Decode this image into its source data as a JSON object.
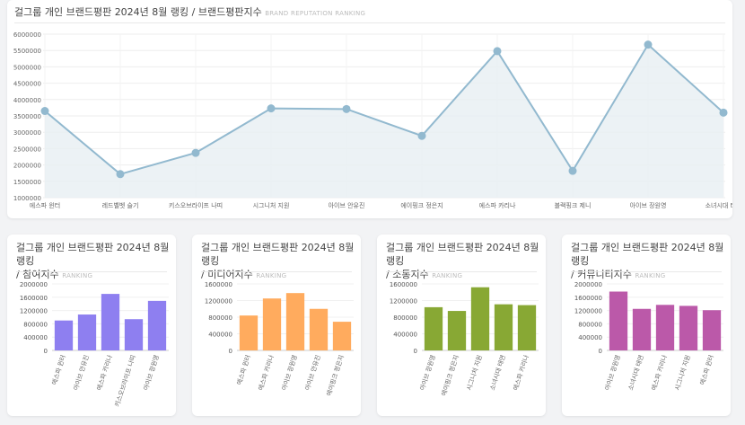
{
  "main": {
    "title": "걸그룹 개인 브랜드평판 2024년 8월 랭킹 / 브랜드평판지수",
    "subtitle": "BRAND REPUTATION RANKING"
  },
  "small_cards": [
    {
      "title_line1": "걸그룹 개인 브랜드평판 2024년 8월 랭킹",
      "title_line2": "/ 참여지수",
      "subtitle": "RANKING"
    },
    {
      "title_line1": "걸그룹 개인 브랜드평판 2024년 8월 랭킹",
      "title_line2": "/ 미디어지수",
      "subtitle": "RANKING"
    },
    {
      "title_line1": "걸그룹 개인 브랜드평판 2024년 8월 랭킹",
      "title_line2": "/ 소통지수",
      "subtitle": "RANKING"
    },
    {
      "title_line1": "걸그룹 개인 브랜드평판 2024년 8월 랭킹",
      "title_line2": "/ 커뮤니티지수",
      "subtitle": "RANKING"
    }
  ],
  "chart_data": [
    {
      "type": "area",
      "title": "걸그룹 개인 브랜드평판 2024년 8월 랭킹 / 브랜드평판지수",
      "categories": [
        "에스파 윈터",
        "레드벨벳 슬기",
        "키스오브라이프 나띠",
        "시그니처 지원",
        "아이브 안유진",
        "에이핑크 정은지",
        "에스파 카리나",
        "블랙핑크 제니",
        "아이브 장원영",
        "소녀시대 태연"
      ],
      "values": [
        3650000,
        1720000,
        2370000,
        3730000,
        3710000,
        2890000,
        5480000,
        1820000,
        5680000,
        3600000
      ],
      "ylim": [
        1000000,
        6000000
      ],
      "yticks": [
        1000000,
        1500000,
        2000000,
        2500000,
        3000000,
        3500000,
        4000000,
        4500000,
        5000000,
        5500000,
        6000000
      ],
      "grid": true,
      "colors": {
        "line": "#92b9cf",
        "fill": "#e7eff3",
        "point": "#92b9cf"
      }
    },
    {
      "type": "bar",
      "title": "걸그룹 개인 브랜드평판 2024년 8월 랭킹 / 참여지수",
      "categories": [
        "에스파 윈터",
        "아이브 안유진",
        "에스파 카리나",
        "키스오브라이프 나띠",
        "아이브 장원영"
      ],
      "values": [
        900000,
        1080000,
        1700000,
        940000,
        1490000
      ],
      "ylim": [
        0,
        2000000
      ],
      "yticks": [
        0,
        400000,
        800000,
        1200000,
        1600000,
        2000000
      ],
      "color": "#8e7ff0"
    },
    {
      "type": "bar",
      "title": "걸그룹 개인 브랜드평판 2024년 8월 랭킹 / 미디어지수",
      "categories": [
        "에스파 윈터",
        "에스파 카리나",
        "아이브 장원영",
        "아이브 안유진",
        "에이핑크 정은지"
      ],
      "values": [
        840000,
        1250000,
        1380000,
        1000000,
        690000
      ],
      "ylim": [
        0,
        1600000
      ],
      "yticks": [
        0,
        400000,
        800000,
        1200000,
        1600000
      ],
      "color": "#ffab5e"
    },
    {
      "type": "bar",
      "title": "걸그룹 개인 브랜드평판 2024년 8월 랭킹 / 소통지수",
      "categories": [
        "아이브 장원영",
        "에이핑크 정은지",
        "시그니처 지원",
        "소녀시대 태연",
        "에스파 카리나"
      ],
      "values": [
        1040000,
        950000,
        1520000,
        1110000,
        1090000
      ],
      "ylim": [
        0,
        1600000
      ],
      "yticks": [
        0,
        400000,
        800000,
        1200000,
        1600000
      ],
      "color": "#88a834"
    },
    {
      "type": "bar",
      "title": "걸그룹 개인 브랜드평판 2024년 8월 랭킹 / 커뮤니티지수",
      "categories": [
        "아이브 장원영",
        "소녀시대 태연",
        "에스파 카리나",
        "시그니처 지원",
        "에스파 윈터"
      ],
      "values": [
        1770000,
        1250000,
        1370000,
        1340000,
        1210000
      ],
      "ylim": [
        0,
        2000000
      ],
      "yticks": [
        0,
        400000,
        800000,
        1200000,
        1600000,
        2000000
      ],
      "color": "#bb59a9"
    }
  ]
}
